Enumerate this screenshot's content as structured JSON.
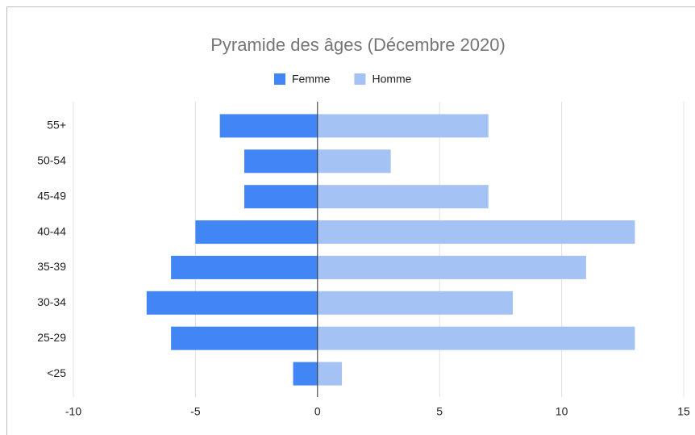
{
  "chart_data": {
    "type": "bar",
    "orientation": "horizontal",
    "title": "Pyramide des âges (Décembre 2020)",
    "categories": [
      "55+",
      "50-54",
      "45-49",
      "40-44",
      "35-39",
      "30-34",
      "25-29",
      "<25"
    ],
    "series": [
      {
        "name": "Femme",
        "color": "#4285f4",
        "values": [
          -4,
          -3,
          -3,
          -5,
          -6,
          -7,
          -6,
          -1
        ]
      },
      {
        "name": "Homme",
        "color": "#a4c2f4",
        "values": [
          7,
          3,
          7,
          13,
          11,
          8,
          13,
          1
        ]
      }
    ],
    "xlim": [
      -10,
      15
    ],
    "xticks": [
      -10,
      -5,
      0,
      5,
      10,
      15
    ],
    "grid": true,
    "legend": "top"
  }
}
